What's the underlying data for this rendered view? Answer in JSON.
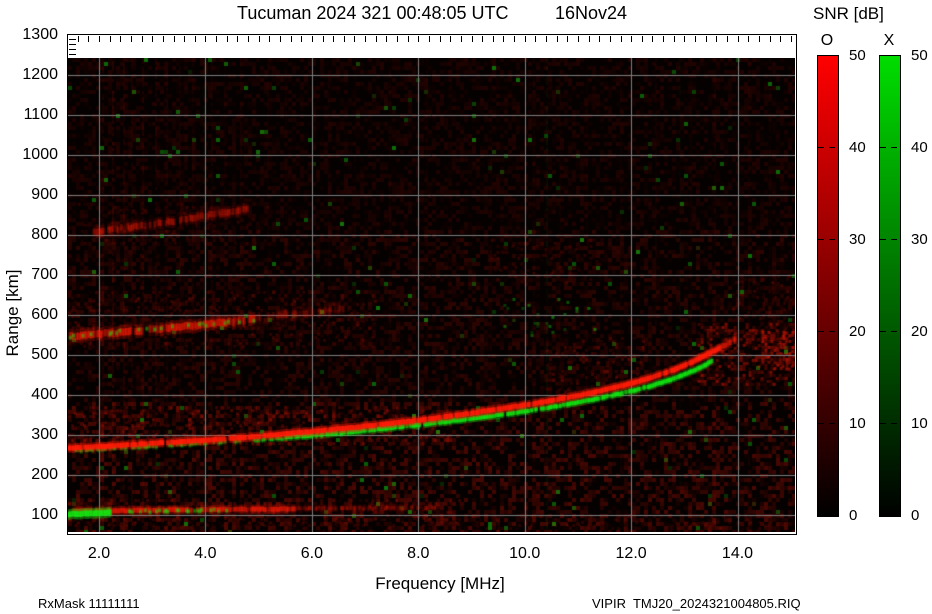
{
  "title": {
    "left": "Tucuman 2024 321 00:48:05 UTC",
    "right": "16Nov24"
  },
  "footer": {
    "left": "RxMask 11111111",
    "right": "VIPIR  TMJ20_2024321004805.RIQ"
  },
  "colorbar": {
    "title": "SNR [dB]",
    "scale_min": 0,
    "scale_max": 50,
    "bars": [
      {
        "label": "O",
        "rgb": "255,0,0",
        "ticks": [
          {
            "v": 50,
            "label": "50"
          },
          {
            "v": 40,
            "label": "40"
          },
          {
            "v": 30,
            "label": "30"
          },
          {
            "v": 20,
            "label": "20"
          },
          {
            "v": 10,
            "label": "10"
          },
          {
            "v": 0,
            "label": "0"
          }
        ]
      },
      {
        "label": "X",
        "rgb": "0,221,0",
        "ticks": [
          {
            "v": 50,
            "label": "50"
          },
          {
            "v": 40,
            "label": "40"
          },
          {
            "v": 30,
            "label": "30"
          },
          {
            "v": 20,
            "label": "20"
          },
          {
            "v": 10,
            "label": "10"
          },
          {
            "v": 0,
            "label": "0"
          }
        ]
      }
    ]
  },
  "chart_data": {
    "type": "heatmap",
    "title": "Tucuman 2024 321 00:48:05 UTC  16Nov24",
    "xlabel": "Frequency [MHz]",
    "ylabel": "Range [km]",
    "x_range": [
      1.417,
      15.08
    ],
    "y_range": [
      57.6,
      1242
    ],
    "x_ticks": [
      {
        "v": 2,
        "label": "2.0"
      },
      {
        "v": 4,
        "label": "4.0"
      },
      {
        "v": 6,
        "label": "6.0"
      },
      {
        "v": 8,
        "label": "8.0"
      },
      {
        "v": 10,
        "label": "10.0"
      },
      {
        "v": 12,
        "label": "12.0"
      },
      {
        "v": 14,
        "label": "14.0"
      }
    ],
    "x_minor_step": 0.2,
    "y_ticks": [
      {
        "v": 100,
        "label": "100"
      },
      {
        "v": 200,
        "label": "200"
      },
      {
        "v": 300,
        "label": "300"
      },
      {
        "v": 400,
        "label": "400"
      },
      {
        "v": 500,
        "label": "500"
      },
      {
        "v": 600,
        "label": "600"
      },
      {
        "v": 700,
        "label": "700"
      },
      {
        "v": 800,
        "label": "800"
      },
      {
        "v": 900,
        "label": "900"
      },
      {
        "v": 1000,
        "label": "1000"
      },
      {
        "v": 1100,
        "label": "1100"
      },
      {
        "v": 1200,
        "label": "1200"
      },
      {
        "v": 1300,
        "label": "1300"
      }
    ],
    "grid_km": [
      100,
      200,
      300,
      400,
      500,
      600,
      700,
      800,
      900,
      1000,
      1100,
      1200
    ],
    "grid_color": "#7f7f7f",
    "background": "#060101",
    "colors": {
      "O": "255,28,8",
      "X": "18,228,18"
    },
    "snr_units": "dB",
    "noise": {
      "cell": 4,
      "red_density": 0.5,
      "red_alpha": [
        0.02,
        0.16
      ],
      "green_density": 0.012,
      "green_alpha": [
        0.12,
        0.5
      ],
      "boost_below_km": 390,
      "boost": 1.7,
      "fade_above_km": 820,
      "fade": 0.7
    },
    "rfi_stripes": [
      {
        "f": 2.05,
        "a": 0.1,
        "c": "O"
      },
      {
        "f": 2.25,
        "a": 0.14,
        "c": "O"
      },
      {
        "f": 2.45,
        "a": 0.1,
        "c": "O"
      },
      {
        "f": 2.6,
        "a": 0.08,
        "c": "O"
      },
      {
        "f": 2.8,
        "a": 0.12,
        "c": "O"
      },
      {
        "f": 3.05,
        "a": 0.1,
        "c": "O"
      },
      {
        "f": 3.25,
        "a": 0.08,
        "c": "O"
      },
      {
        "f": 3.5,
        "a": 0.07,
        "c": "O"
      },
      {
        "f": 3.75,
        "a": 0.06,
        "c": "O"
      },
      {
        "f": 3.95,
        "a": 0.05,
        "c": "X"
      },
      {
        "f": 4.1,
        "a": 0.07,
        "c": "O"
      },
      {
        "f": 4.35,
        "a": 0.05,
        "c": "O"
      },
      {
        "f": 4.65,
        "a": 0.06,
        "c": "O"
      },
      {
        "f": 5.15,
        "a": 0.05,
        "c": "O"
      },
      {
        "f": 5.5,
        "a": 0.04,
        "c": "O"
      },
      {
        "f": 6.3,
        "a": 0.05,
        "c": "O"
      },
      {
        "f": 6.8,
        "a": 0.04,
        "c": "O"
      },
      {
        "f": 7.45,
        "a": 0.06,
        "c": "O"
      },
      {
        "f": 8.15,
        "a": 0.05,
        "c": "O"
      },
      {
        "f": 8.6,
        "a": 0.04,
        "c": "O"
      },
      {
        "f": 9.35,
        "a": 0.05,
        "c": "O"
      },
      {
        "f": 10.15,
        "a": 0.06,
        "c": "O"
      },
      {
        "f": 10.4,
        "a": 0.06,
        "c": "X"
      },
      {
        "f": 10.65,
        "a": 0.05,
        "c": "O"
      },
      {
        "f": 11.15,
        "a": 0.04,
        "c": "O"
      },
      {
        "f": 11.8,
        "a": 0.05,
        "c": "O"
      },
      {
        "f": 12.45,
        "a": 0.06,
        "c": "O"
      },
      {
        "f": 12.9,
        "a": 0.04,
        "c": "X"
      },
      {
        "f": 13.1,
        "a": 0.05,
        "c": "O"
      },
      {
        "f": 13.55,
        "a": 0.07,
        "c": "O"
      },
      {
        "f": 14.2,
        "a": 0.06,
        "c": "O"
      },
      {
        "f": 14.6,
        "a": 0.05,
        "c": "O"
      }
    ],
    "regions": [
      {
        "f": [
          1.42,
          8.6
        ],
        "r": [
          275,
          372
        ],
        "density": 0.3,
        "alpha": [
          0.04,
          0.28
        ],
        "c": "O"
      },
      {
        "f": [
          10.4,
          12.3
        ],
        "r": [
          400,
          545
        ],
        "density": 0.22,
        "alpha": [
          0.04,
          0.22
        ],
        "c": "O"
      },
      {
        "f": [
          1.42,
          8.8
        ],
        "r": [
          95,
          140
        ],
        "density": 0.22,
        "alpha": [
          0.04,
          0.22
        ],
        "c": "O"
      },
      {
        "f": [
          1.42,
          15.08
        ],
        "r": [
          58,
          100
        ],
        "density": 0.25,
        "alpha": [
          0.03,
          0.15
        ],
        "c": "O"
      },
      {
        "f": [
          1.42,
          7.2
        ],
        "r": [
          520,
          660
        ],
        "density": 0.2,
        "alpha": [
          0.03,
          0.18
        ],
        "c": "O"
      },
      {
        "f": [
          1.6,
          5.2
        ],
        "r": [
          780,
          880
        ],
        "density": 0.15,
        "alpha": [
          0.03,
          0.14
        ],
        "c": "O"
      },
      {
        "f": [
          9.3,
          11.4
        ],
        "r": [
          680,
          790
        ],
        "density": 0.15,
        "alpha": [
          0.04,
          0.16
        ],
        "c": "O"
      },
      {
        "f": [
          13.25,
          15.08
        ],
        "r": [
          430,
          580
        ],
        "density": 0.4,
        "alpha": [
          0.06,
          0.4
        ],
        "c": "O"
      },
      {
        "f": [
          14.45,
          15.08
        ],
        "r": [
          470,
          560
        ],
        "density": 0.55,
        "alpha": [
          0.12,
          0.55
        ],
        "c": "O"
      },
      {
        "f": [
          13.9,
          15.08
        ],
        "r": [
          560,
          700
        ],
        "density": 0.18,
        "alpha": [
          0.04,
          0.18
        ],
        "c": "O"
      },
      {
        "f": [
          9.6,
          11.3
        ],
        "r": [
          550,
          665
        ],
        "density": 0.04,
        "alpha": [
          0.15,
          0.5
        ],
        "c": "X"
      }
    ],
    "traces": [
      {
        "name": "third-hop-O",
        "mode": "O",
        "points": [
          [
            1.9,
            806
          ],
          [
            3.2,
            831
          ],
          [
            4.8,
            866
          ]
        ],
        "halfwidth_km": 8,
        "alpha": 0.3,
        "dropout": 0.25,
        "jitter_km": 6
      },
      {
        "name": "second-hop-ext-O",
        "mode": "O",
        "points": [
          [
            4.9,
            591
          ],
          [
            6.6,
            616
          ]
        ],
        "halfwidth_km": 8,
        "alpha": 0.2,
        "dropout": 0.35,
        "jitter_km": 6
      },
      {
        "name": "second-hop-O",
        "mode": "O",
        "points": [
          [
            1.42,
            546
          ],
          [
            2.5,
            558
          ],
          [
            3.6,
            571
          ],
          [
            4.9,
            589
          ]
        ],
        "halfwidth_km": 9,
        "alpha": 0.5,
        "dropout": 0.12,
        "jitter_km": 5
      },
      {
        "name": "second-hop-X-speckle",
        "mode": "X",
        "points": [
          [
            1.42,
            546
          ],
          [
            2.5,
            558
          ],
          [
            3.6,
            571
          ],
          [
            4.9,
            589
          ]
        ],
        "halfwidth_km": 4,
        "alpha": 0.45,
        "dropout": 0.8,
        "jitter_km": 8
      },
      {
        "name": "e-layer-O",
        "mode": "O",
        "points": [
          [
            1.5,
            110
          ],
          [
            3,
            112
          ],
          [
            4.5,
            114
          ],
          [
            5.7,
            116
          ]
        ],
        "halfwidth_km": 6,
        "alpha": 0.55,
        "dropout": 0.15,
        "jitter_km": 3
      },
      {
        "name": "e-layer-ext-O",
        "mode": "O",
        "points": [
          [
            5.7,
            116
          ],
          [
            8.4,
            119
          ]
        ],
        "halfwidth_km": 5,
        "alpha": 0.2,
        "dropout": 0.4,
        "jitter_km": 3
      },
      {
        "name": "e-layer-X-blob",
        "mode": "X",
        "points": [
          [
            1.42,
            102
          ],
          [
            1.8,
            104
          ],
          [
            2.2,
            106
          ]
        ],
        "halfwidth_km": 7,
        "alpha": 0.9,
        "dropout": 0.05,
        "jitter_km": 2
      },
      {
        "name": "e-layer-X-speckle",
        "mode": "X",
        "points": [
          [
            2.2,
            108
          ],
          [
            4.5,
            112
          ]
        ],
        "halfwidth_km": 4,
        "alpha": 0.5,
        "dropout": 0.7,
        "jitter_km": 5
      },
      {
        "name": "f-layer-X-lowfreq",
        "mode": "X",
        "points": [
          [
            1.42,
            261
          ],
          [
            3,
            271
          ],
          [
            4.5,
            284
          ],
          [
            5.5,
            292
          ]
        ],
        "halfwidth_km": 4,
        "alpha": 0.55,
        "dropout": 0.6,
        "jitter_km": 4
      },
      {
        "name": "f-layer-X",
        "mode": "X",
        "points": [
          [
            5.5,
            294
          ],
          [
            6,
            299
          ],
          [
            7,
            311
          ],
          [
            8,
            325
          ],
          [
            9,
            341
          ],
          [
            10,
            359
          ],
          [
            10.5,
            370
          ],
          [
            11,
            382
          ],
          [
            11.5,
            395
          ],
          [
            12,
            410
          ],
          [
            12.4,
            424
          ],
          [
            12.8,
            441
          ],
          [
            13.1,
            457
          ],
          [
            13.35,
            472
          ],
          [
            13.55,
            489
          ]
        ],
        "halfwidth_km": 5,
        "alpha": 0.85,
        "dropout": 0.18,
        "jitter_km": 2
      },
      {
        "name": "f-layer-O",
        "mode": "O",
        "points": [
          [
            1.42,
            267
          ],
          [
            2,
            271
          ],
          [
            3,
            279
          ],
          [
            4,
            287
          ],
          [
            5,
            297
          ],
          [
            6,
            309
          ],
          [
            7,
            322
          ],
          [
            8,
            337
          ],
          [
            9,
            355
          ],
          [
            10,
            375
          ],
          [
            10.5,
            386
          ],
          [
            11,
            399
          ],
          [
            11.5,
            413
          ],
          [
            12,
            429
          ],
          [
            12.4,
            445
          ],
          [
            12.8,
            463
          ],
          [
            13.1,
            480
          ],
          [
            13.4,
            500
          ],
          [
            13.68,
            519
          ]
        ],
        "halfwidth_km": 6,
        "alpha": 0.95,
        "dropout": 0.06,
        "jitter_km": 2
      },
      {
        "name": "f-layer-O-spread-ext",
        "mode": "O",
        "points": [
          [
            13.68,
            519
          ],
          [
            13.95,
            541
          ]
        ],
        "halfwidth_km": 7,
        "alpha": 0.5,
        "dropout": 0.3,
        "jitter_km": 6
      }
    ]
  }
}
